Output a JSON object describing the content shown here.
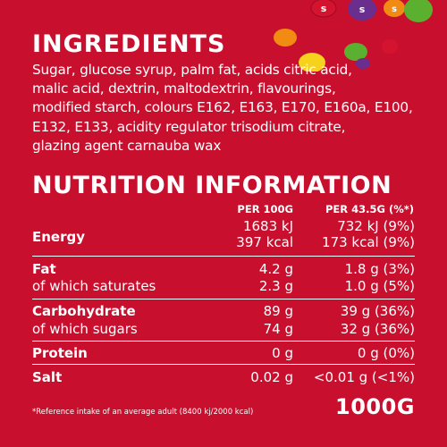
{
  "colors": {
    "background": "#c8102e",
    "text": "#ffffff",
    "candy_red": "#c8102e",
    "candy_purple": "#6a2e8f",
    "candy_orange": "#f28b12",
    "candy_green": "#5cb030",
    "candy_yellow": "#f7d21c"
  },
  "candy_letter": "s",
  "ingredients": {
    "title": "INGREDIENTS",
    "lines": [
      "Sugar, glucose syrup, palm fat, acids citric acid,",
      "malic acid, dextrin, maltodextrin, flavourings,",
      "modified starch, colours E162, E163, E170, E160a, E100,",
      "E132, E133, acidity regulator trisodium citrate,",
      "glazing agent carnauba wax"
    ]
  },
  "nutrition": {
    "title": "NUTRITION INFORMATION",
    "col_per100": "PER 100G",
    "col_serving": "PER 43.5G (%*)",
    "rows": [
      {
        "label": "Energy",
        "bold": true,
        "per100": "1683 kJ",
        "serving": "732 kJ (9%)"
      },
      {
        "label": "",
        "bold": false,
        "per100": "397 kcal",
        "serving": "173 kcal (9%)"
      },
      {
        "label": "Fat",
        "bold": true,
        "per100": "4.2 g",
        "serving": "1.8 g (3%)"
      },
      {
        "label": "of which saturates",
        "bold": false,
        "per100": "2.3 g",
        "serving": "1.0 g (5%)"
      },
      {
        "label": "Carbohydrate",
        "bold": true,
        "per100": "89 g",
        "serving": "39 g (36%)"
      },
      {
        "label": "of which sugars",
        "bold": false,
        "per100": "74 g",
        "serving": "32 g (36%)"
      },
      {
        "label": "Protein",
        "bold": true,
        "per100": "0 g",
        "serving": "0 g (0%)"
      },
      {
        "label": "Salt",
        "bold": true,
        "per100": "0.02 g",
        "serving": "<0.01 g (<1%)"
      }
    ]
  },
  "footnote": "*Reference intake of an average adult (8400 kj/2000 kcal)",
  "net_weight": "1000G"
}
